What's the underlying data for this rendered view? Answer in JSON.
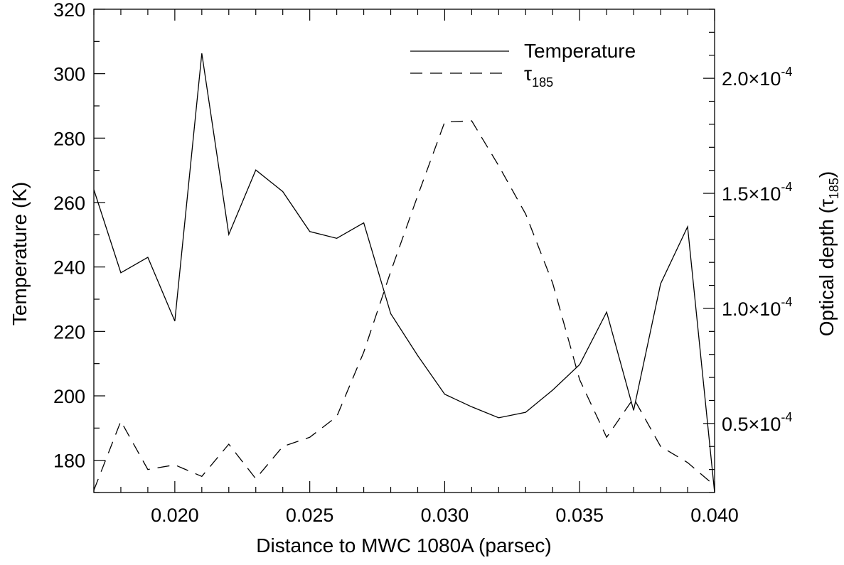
{
  "chart_data": {
    "type": "line",
    "xlabel": "Distance to MWC 1080A (parsec)",
    "ylabel_left": "Temperature (K)",
    "ylabel_right": {
      "main": "Optical depth (",
      "symbol": "τ",
      "subscript": "185",
      "close": ")"
    },
    "xlim": [
      0.017,
      0.04
    ],
    "ylim_left": [
      170,
      320
    ],
    "ylim_right": [
      2e-05,
      0.00023
    ],
    "x_ticks": [
      0.02,
      0.025,
      0.03,
      0.035,
      0.04
    ],
    "x_tick_labels": [
      "0.020",
      "0.025",
      "0.030",
      "0.035",
      "0.040"
    ],
    "left_ticks": [
      180,
      200,
      220,
      240,
      260,
      280,
      300,
      320
    ],
    "left_tick_labels": [
      "180",
      "200",
      "220",
      "240",
      "260",
      "280",
      "300",
      "320"
    ],
    "right_ticks": [
      5e-05,
      0.0001,
      0.00015,
      0.0002
    ],
    "right_tick_labels": [
      {
        "mantissa": "0.5",
        "times": "×",
        "base": "10",
        "exp": "-4"
      },
      {
        "mantissa": "1.0",
        "times": "×",
        "base": "10",
        "exp": "-4"
      },
      {
        "mantissa": "1.5",
        "times": "×",
        "base": "10",
        "exp": "-4"
      },
      {
        "mantissa": "2.0",
        "times": "×",
        "base": "10",
        "exp": "-4"
      }
    ],
    "legend": [
      {
        "label": "Temperature",
        "style": "solid",
        "axis": "left"
      },
      {
        "label": "τ",
        "subscript": "185",
        "style": "dashed",
        "axis": "right"
      }
    ],
    "legend_position": "top-right",
    "series": [
      {
        "name": "Temperature",
        "axis": "left",
        "style": "solid",
        "x": [
          0.017,
          0.018,
          0.019,
          0.02,
          0.021,
          0.022,
          0.023,
          0.024,
          0.025,
          0.026,
          0.027,
          0.028,
          0.029,
          0.03,
          0.031,
          0.032,
          0.033,
          0.034,
          0.035,
          0.036,
          0.037,
          0.038,
          0.039,
          0.04
        ],
        "y": [
          264,
          238.2,
          243,
          223.2,
          306.3,
          250.1,
          270.1,
          263.4,
          251,
          248.9,
          253.7,
          225.5,
          212.5,
          200.5,
          196.6,
          193.2,
          194.9,
          201.8,
          209.7,
          226,
          195.5,
          234.8,
          252.5,
          170
        ]
      },
      {
        "name": "τ185",
        "axis": "right",
        "style": "dashed",
        "x": [
          0.017,
          0.018,
          0.019,
          0.02,
          0.021,
          0.022,
          0.023,
          0.024,
          0.025,
          0.026,
          0.027,
          0.028,
          0.029,
          0.03,
          0.031,
          0.032,
          0.033,
          0.034,
          0.035,
          0.036,
          0.037,
          0.038,
          0.039,
          0.04
        ],
        "y": [
          2.1e-05,
          5.1e-05,
          3e-05,
          3.2e-05,
          2.7e-05,
          4.1e-05,
          2.6e-05,
          4e-05,
          4.4e-05,
          5.3e-05,
          8.1e-05,
          0.000116,
          0.000149,
          0.000181,
          0.0001815,
          0.000162,
          0.000141,
          0.000111,
          6.9e-05,
          4.4e-05,
          6.1e-05,
          4e-05,
          3.3e-05,
          2.3e-05
        ]
      }
    ]
  },
  "colors": {
    "background": "#ffffff",
    "ink": "#000000"
  }
}
